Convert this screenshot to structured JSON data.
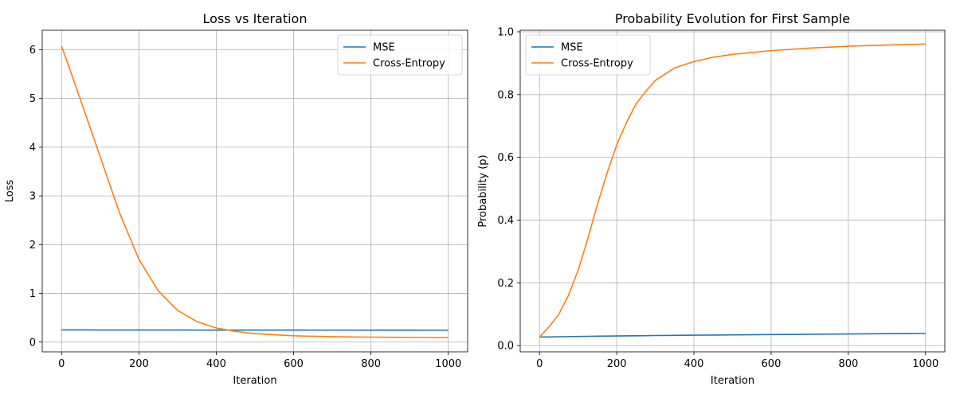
{
  "chart_data": [
    {
      "type": "line",
      "title": "Loss vs Iteration",
      "xlabel": "Iteration",
      "ylabel": "Loss",
      "xlim": [
        -50,
        1050
      ],
      "ylim": [
        -0.2,
        6.4
      ],
      "xticks": [
        0,
        200,
        400,
        600,
        800,
        1000
      ],
      "yticks": [
        0,
        1,
        2,
        3,
        4,
        5,
        6
      ],
      "grid": true,
      "legend_position": "top-right",
      "x": [
        0,
        50,
        100,
        150,
        200,
        250,
        300,
        350,
        400,
        450,
        500,
        550,
        600,
        650,
        700,
        750,
        800,
        850,
        900,
        950,
        1000
      ],
      "series": [
        {
          "name": "MSE",
          "color": "#1f77b4",
          "values": [
            0.25,
            0.25,
            0.249,
            0.249,
            0.248,
            0.248,
            0.248,
            0.247,
            0.247,
            0.247,
            0.246,
            0.246,
            0.246,
            0.245,
            0.245,
            0.245,
            0.244,
            0.244,
            0.244,
            0.243,
            0.243
          ]
        },
        {
          "name": "Cross-Entropy",
          "color": "#ff7f0e",
          "values": [
            6.08,
            4.95,
            3.8,
            2.65,
            1.7,
            1.05,
            0.65,
            0.42,
            0.29,
            0.22,
            0.175,
            0.15,
            0.13,
            0.12,
            0.112,
            0.106,
            0.102,
            0.099,
            0.096,
            0.094,
            0.092
          ]
        }
      ]
    },
    {
      "type": "line",
      "title": "Probability Evolution for First Sample",
      "xlabel": "Iteration",
      "ylabel": "Probability (p)",
      "xlim": [
        -50,
        1050
      ],
      "ylim": [
        -0.02,
        1.005
      ],
      "xticks": [
        0,
        200,
        400,
        600,
        800,
        1000
      ],
      "yticks": [
        0.0,
        0.2,
        0.4,
        0.6,
        0.8,
        1.0
      ],
      "ytick_labels": [
        "0.0",
        "0.2",
        "0.4",
        "0.6",
        "0.8",
        "1.0"
      ],
      "grid": true,
      "legend_position": "top-left",
      "x": [
        0,
        25,
        50,
        75,
        100,
        125,
        150,
        175,
        200,
        225,
        250,
        275,
        300,
        350,
        400,
        450,
        500,
        600,
        700,
        800,
        900,
        1000
      ],
      "series": [
        {
          "name": "MSE",
          "color": "#1f77b4",
          "values": [
            0.027,
            0.0275,
            0.028,
            0.0285,
            0.029,
            0.0295,
            0.03,
            0.0303,
            0.0306,
            0.031,
            0.0313,
            0.0316,
            0.032,
            0.0326,
            0.033,
            0.0335,
            0.034,
            0.035,
            0.036,
            0.037,
            0.038,
            0.039
          ]
        },
        {
          "name": "Cross-Entropy",
          "color": "#ff7f0e",
          "values": [
            0.027,
            0.06,
            0.1,
            0.16,
            0.24,
            0.34,
            0.45,
            0.55,
            0.64,
            0.71,
            0.77,
            0.81,
            0.845,
            0.885,
            0.905,
            0.919,
            0.928,
            0.94,
            0.948,
            0.954,
            0.958,
            0.961
          ]
        }
      ]
    }
  ]
}
